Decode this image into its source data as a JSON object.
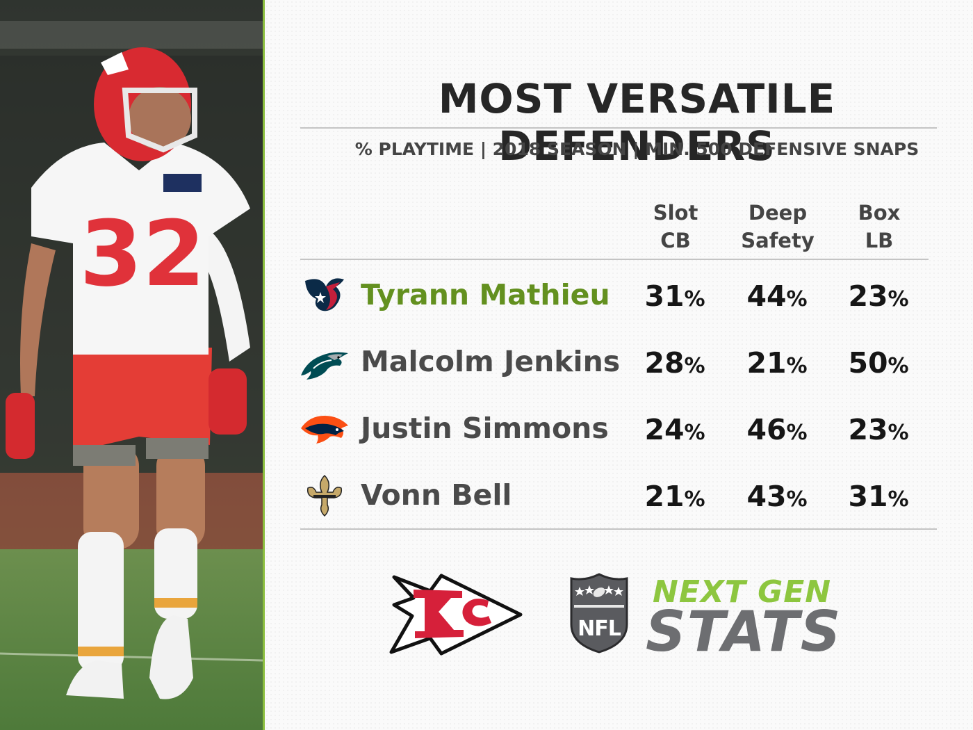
{
  "title": "MOST VERSATILE DEFENDERS",
  "subtitle": "% PLAYTIME  |  2018 SEASON  |  MIN. 500 DEFENSIVE SNAPS",
  "columns": [
    {
      "line1": "Slot",
      "line2": "CB"
    },
    {
      "line1": "Deep",
      "line2": "Safety"
    },
    {
      "line1": "Box",
      "line2": "LB"
    }
  ],
  "percent_sign": "%",
  "rows": [
    {
      "team_logo": "texans-logo-icon",
      "name": "Tyrann Mathieu",
      "highlight": true,
      "slot_cb": "31",
      "deep_safety": "44",
      "box_lb": "23"
    },
    {
      "team_logo": "eagles-logo-icon",
      "name": "Malcolm Jenkins",
      "highlight": false,
      "slot_cb": "28",
      "deep_safety": "21",
      "box_lb": "50"
    },
    {
      "team_logo": "broncos-logo-icon",
      "name": "Justin Simmons",
      "highlight": false,
      "slot_cb": "24",
      "deep_safety": "46",
      "box_lb": "23"
    },
    {
      "team_logo": "saints-logo-icon",
      "name": "Vonn Bell",
      "highlight": false,
      "slot_cb": "21",
      "deep_safety": "43",
      "box_lb": "31"
    }
  ],
  "photo": {
    "jersey_number": "32",
    "description_icon": "player-photo"
  },
  "footer": {
    "team_logo": "chiefs-logo-icon",
    "league_logo": "nfl-shield-icon",
    "brand_top": "NEXT GEN",
    "brand_bottom": "STATS"
  },
  "colors": {
    "accent_green": "#8cbf3f",
    "highlight_name": "#63901f",
    "title": "#262626",
    "chiefs_red": "#d6203a",
    "brand_gray": "#6d6e71"
  }
}
